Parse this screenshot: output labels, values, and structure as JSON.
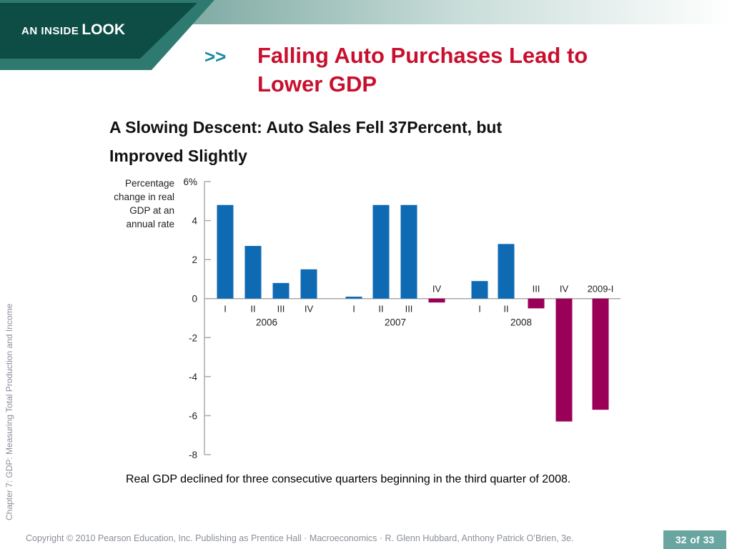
{
  "header": {
    "badge_small": "AN INSIDE",
    "badge_big": "LOOK",
    "arrows": ">>",
    "title": "Falling Auto Purchases Lead to Lower GDP"
  },
  "chart_title": "A Slowing Descent: Auto Sales Fell 37Percent, but Improved Slightly",
  "side_label": "Chapter 7:  GDP: Measuring Total Production and Income",
  "caption": "Real GDP declined for three consecutive quarters beginning in the third quarter of 2008.",
  "footer": "Copyright © 2010 Pearson Education, Inc. Publishing as Prentice Hall · Macroeconomics · R. Glenn Hubbard, Anthony Patrick O’Brien, 3e.",
  "page": {
    "current": "32",
    "of": "of",
    "total": "33"
  },
  "colors": {
    "banner_dark": "#0d4d45",
    "banner_mid": "#2f7a70",
    "title_red": "#c8102e",
    "positive_bar": "#0f6ab4",
    "negative_bar": "#9b0059"
  },
  "chart_data": {
    "type": "bar",
    "ylabel": "Percentage change in real GDP at an annual rate",
    "ylim": [
      -8,
      6
    ],
    "yticks": [
      "6%",
      "4",
      "2",
      "0",
      "-2",
      "-4",
      "-6",
      "-8"
    ],
    "year_labels": [
      "2006",
      "2007",
      "2008"
    ],
    "categories": [
      "I",
      "II",
      "III",
      "IV",
      "I",
      "II",
      "III",
      "IV",
      "I",
      "II",
      "III",
      "IV",
      "2009-I"
    ],
    "category_years": [
      "2006",
      "2006",
      "2006",
      "2006",
      "2007",
      "2007",
      "2007",
      "2007",
      "2008",
      "2008",
      "2008",
      "2008",
      "2009"
    ],
    "values": [
      4.8,
      2.7,
      0.8,
      1.5,
      0.1,
      4.8,
      4.8,
      -0.2,
      0.9,
      2.8,
      -0.5,
      -6.3,
      -5.7
    ]
  }
}
